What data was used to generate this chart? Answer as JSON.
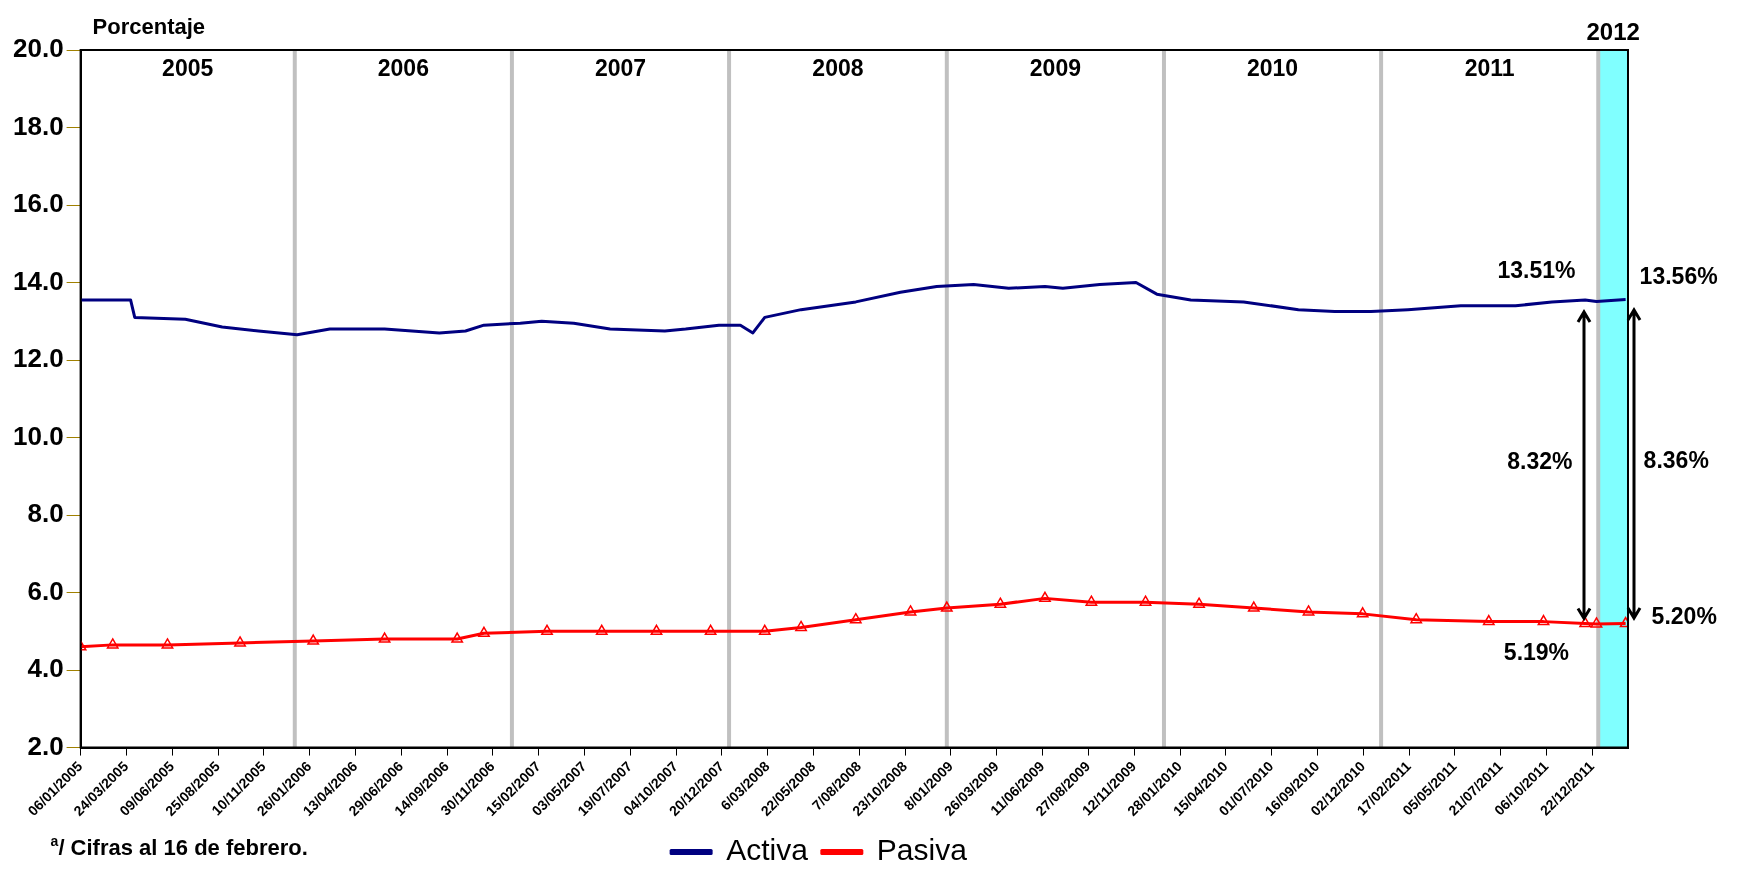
{
  "chart_data": {
    "type": "line",
    "ylabel": "Porcentaje",
    "legend": "bottom",
    "xlim": [
      "2005-01-06",
      "2012-02-20"
    ],
    "xticks": [
      {
        "value": "2005-01-06",
        "label": "06/01/2005"
      },
      {
        "value": "2005-03-24",
        "label": "24/03/2005"
      },
      {
        "value": "2005-06-09",
        "label": "09/06/2005"
      },
      {
        "value": "2005-08-25",
        "label": "25/08/2005"
      },
      {
        "value": "2005-11-10",
        "label": "10/11/2005"
      },
      {
        "value": "2006-01-26",
        "label": "26/01/2006"
      },
      {
        "value": "2006-04-13",
        "label": "13/04/2006"
      },
      {
        "value": "2006-06-29",
        "label": "29/06/2006"
      },
      {
        "value": "2006-09-14",
        "label": "14/09/2006"
      },
      {
        "value": "2006-11-30",
        "label": "30/11/2006"
      },
      {
        "value": "2007-02-15",
        "label": "15/02/2007"
      },
      {
        "value": "2007-05-03",
        "label": "03/05/2007"
      },
      {
        "value": "2007-07-19",
        "label": "19/07/2007"
      },
      {
        "value": "2007-10-04",
        "label": "04/10/2007"
      },
      {
        "value": "2007-12-20",
        "label": "20/12/2007"
      },
      {
        "value": "2008-03-06",
        "label": "6/03/2008"
      },
      {
        "value": "2008-05-22",
        "label": "22/05/2008"
      },
      {
        "value": "2008-08-07",
        "label": "7/08/2008"
      },
      {
        "value": "2008-10-23",
        "label": "23/10/2008"
      },
      {
        "value": "2009-01-08",
        "label": "8/01/2009"
      },
      {
        "value": "2009-03-26",
        "label": "26/03/2009"
      },
      {
        "value": "2009-06-11",
        "label": "11/06/2009"
      },
      {
        "value": "2009-08-27",
        "label": "27/08/2009"
      },
      {
        "value": "2009-11-12",
        "label": "12/11/2009"
      },
      {
        "value": "2010-01-28",
        "label": "28/01/2010"
      },
      {
        "value": "2010-04-15",
        "label": "15/04/2010"
      },
      {
        "value": "2010-07-01",
        "label": "01/07/2010"
      },
      {
        "value": "2010-09-16",
        "label": "16/09/2010"
      },
      {
        "value": "2010-12-02",
        "label": "02/12/2010"
      },
      {
        "value": "2011-02-17",
        "label": "17/02/2011"
      },
      {
        "value": "2011-05-05",
        "label": "05/05/2011"
      },
      {
        "value": "2011-07-21",
        "label": "21/07/2011"
      },
      {
        "value": "2011-10-06",
        "label": "06/10/2011"
      },
      {
        "value": "2011-12-22",
        "label": "22/12/2011"
      }
    ],
    "ylim": [
      2,
      20
    ],
    "yticks": [
      {
        "value": 2,
        "label": "2.0"
      },
      {
        "value": 4,
        "label": "4.0"
      },
      {
        "value": 6,
        "label": "6.0"
      },
      {
        "value": 8,
        "label": "8.0"
      },
      {
        "value": 10,
        "label": "10.0"
      },
      {
        "value": 12,
        "label": "12.0"
      },
      {
        "value": 14,
        "label": "14.0"
      },
      {
        "value": 16,
        "label": "16.0"
      },
      {
        "value": 18,
        "label": "18.0"
      },
      {
        "value": 20,
        "label": "20.0"
      }
    ],
    "series": [
      {
        "name": "Activa",
        "color": "#000080",
        "marker": "none",
        "x": [
          "2005-01-06",
          "2005-03-31",
          "2005-04-07",
          "2005-07-01",
          "2005-09-01",
          "2005-11-01",
          "2006-01-05",
          "2006-03-01",
          "2006-06-01",
          "2006-09-01",
          "2006-10-15",
          "2006-11-15",
          "2007-01-15",
          "2007-02-20",
          "2007-04-15",
          "2007-06-15",
          "2007-09-15",
          "2007-10-20",
          "2007-12-15",
          "2008-01-20",
          "2008-02-10",
          "2008-03-01",
          "2008-05-01",
          "2008-08-01",
          "2008-10-15",
          "2008-12-15",
          "2009-02-15",
          "2009-04-15",
          "2009-06-15",
          "2009-07-15",
          "2009-09-15",
          "2009-11-15",
          "2009-12-20",
          "2010-02-15",
          "2010-05-15",
          "2010-08-15",
          "2010-10-15",
          "2010-12-15",
          "2011-02-15",
          "2011-05-15",
          "2011-08-15",
          "2011-10-15",
          "2011-12-10",
          "2011-12-29",
          "2012-02-16"
        ],
        "values": [
          13.55,
          13.55,
          13.1,
          13.05,
          12.85,
          12.75,
          12.65,
          12.8,
          12.8,
          12.7,
          12.75,
          12.9,
          12.95,
          13.0,
          12.95,
          12.8,
          12.75,
          12.8,
          12.9,
          12.9,
          12.7,
          13.1,
          13.3,
          13.5,
          13.75,
          13.9,
          13.95,
          13.85,
          13.9,
          13.85,
          13.95,
          14.0,
          13.7,
          13.55,
          13.5,
          13.3,
          13.25,
          13.25,
          13.3,
          13.4,
          13.4,
          13.5,
          13.55,
          13.51,
          13.56
        ]
      },
      {
        "name": "Pasiva",
        "color": "#ff0000",
        "marker": "triangle",
        "x": [
          "2005-01-06",
          "2005-03-01",
          "2005-06-01",
          "2005-10-01",
          "2006-02-01",
          "2006-06-01",
          "2006-10-01",
          "2006-11-15",
          "2007-03-01",
          "2007-06-01",
          "2007-09-01",
          "2007-12-01",
          "2008-03-01",
          "2008-05-01",
          "2008-08-01",
          "2008-11-01",
          "2009-01-01",
          "2009-04-01",
          "2009-06-15",
          "2009-09-01",
          "2009-12-01",
          "2010-03-01",
          "2010-06-01",
          "2010-09-01",
          "2010-12-01",
          "2011-03-01",
          "2011-07-01",
          "2011-10-01",
          "2011-12-10",
          "2011-12-29",
          "2012-02-16"
        ],
        "values": [
          4.6,
          4.65,
          4.65,
          4.7,
          4.75,
          4.8,
          4.8,
          4.95,
          5.0,
          5.0,
          5.0,
          5.0,
          5.0,
          5.1,
          5.3,
          5.5,
          5.6,
          5.7,
          5.85,
          5.75,
          5.75,
          5.7,
          5.6,
          5.5,
          5.45,
          5.3,
          5.25,
          5.25,
          5.2,
          5.19,
          5.2
        ]
      }
    ],
    "ref_lines": [
      {
        "axis": "x",
        "value": "2006-01-01",
        "color": "#c0c0c0"
      },
      {
        "axis": "x",
        "value": "2007-01-01",
        "color": "#c0c0c0"
      },
      {
        "axis": "x",
        "value": "2008-01-01",
        "color": "#c0c0c0"
      },
      {
        "axis": "x",
        "value": "2009-01-01",
        "color": "#c0c0c0"
      },
      {
        "axis": "x",
        "value": "2010-01-01",
        "color": "#c0c0c0"
      },
      {
        "axis": "x",
        "value": "2011-01-01",
        "color": "#c0c0c0"
      },
      {
        "axis": "x",
        "value": "2012-01-01",
        "color": "#c0c0c0"
      }
    ],
    "bands": [
      {
        "axis": "x",
        "from": "2012-01-01",
        "to": "2012-02-20",
        "label": "2012",
        "color": "#80ffff"
      }
    ],
    "annotations": [
      "2005",
      "2006",
      "2007",
      "2008",
      "2009",
      "2010",
      "2011",
      {
        "text": "13.51%",
        "x": "2011-12-29",
        "y": 13.51
      },
      {
        "text": "5.19%",
        "x": "2011-12-29",
        "y": 5.19
      },
      {
        "text": "8.32%",
        "x": "2011-12-29",
        "y": 9.35
      },
      {
        "text": "13.56%",
        "x": "2012-02-16",
        "y": 13.56
      },
      {
        "text": "5.20%",
        "x": "2012-02-16",
        "y": 5.2
      },
      {
        "text": "8.36%",
        "x": "2012-02-16",
        "y": 9.38
      },
      "$^{a}$/ Cifras al 16 de febrero."
    ]
  }
}
